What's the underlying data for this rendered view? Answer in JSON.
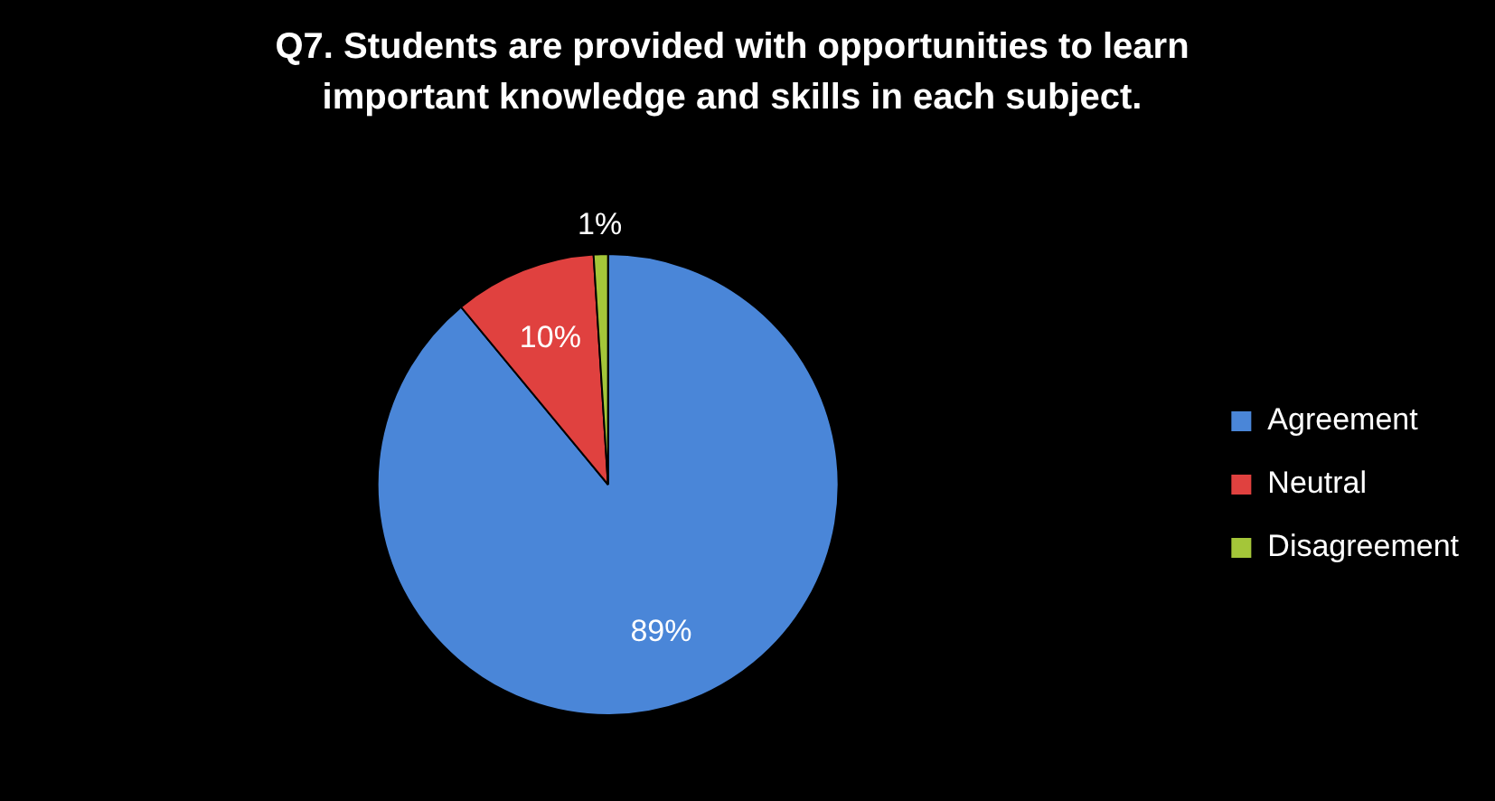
{
  "chart_data": {
    "type": "pie",
    "title": "Q7. Students are provided with opportunities to learn important knowledge and skills in each subject.",
    "categories": [
      "Agreement",
      "Neutral",
      "Disagreement"
    ],
    "values": [
      89,
      10,
      1
    ],
    "colors": [
      "#4a86d8",
      "#e0413f",
      "#a4c639"
    ],
    "value_labels": [
      "89%",
      "10%",
      "1%"
    ],
    "legend": "right"
  }
}
